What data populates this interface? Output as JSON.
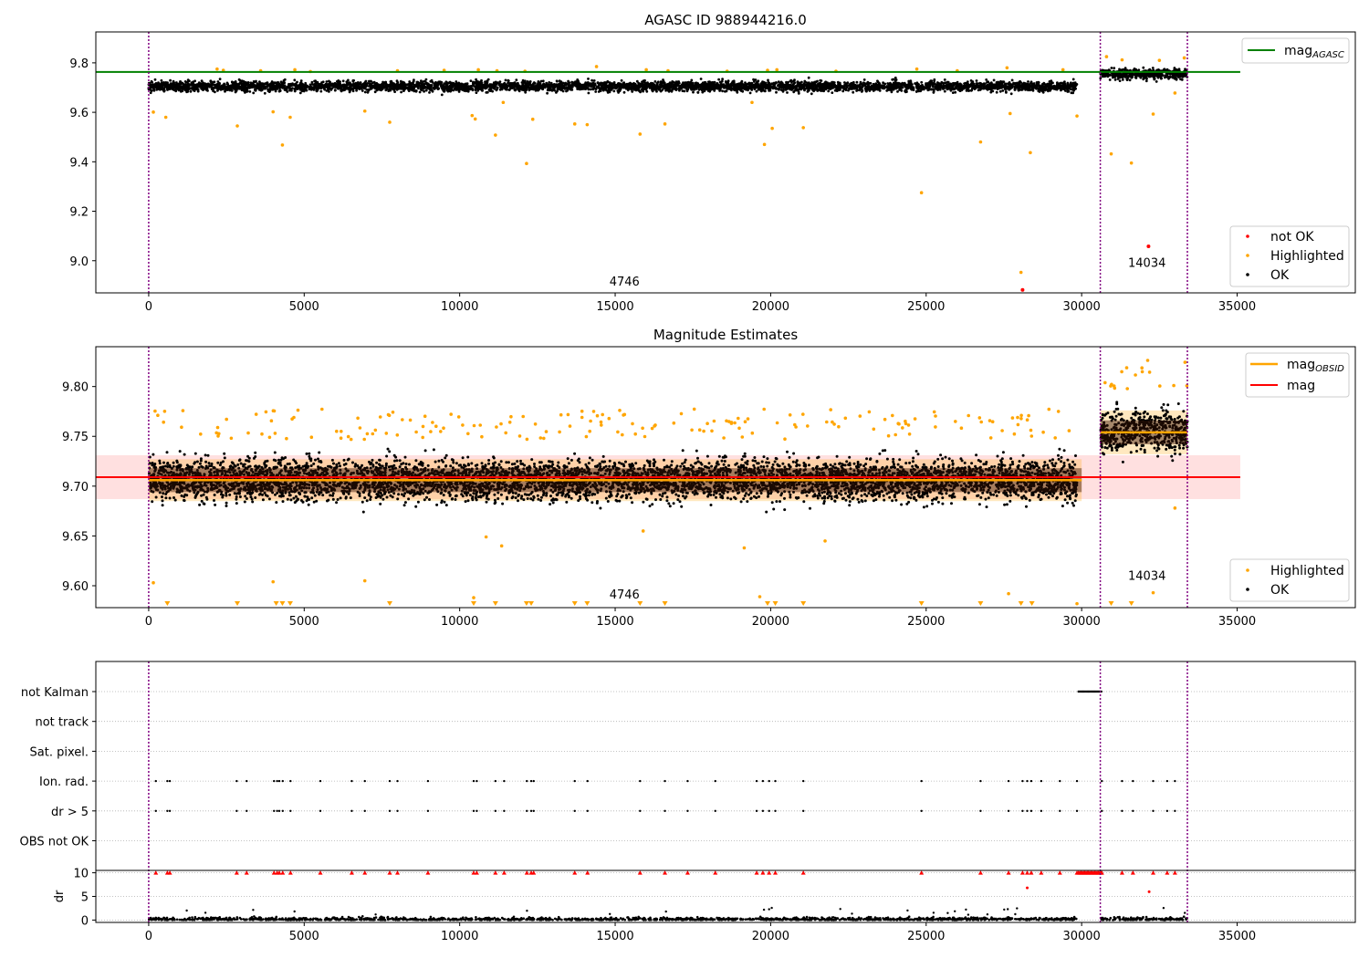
{
  "chart_data": [
    {
      "type": "scatter",
      "title": "AGASC ID 988944216.0",
      "xlim": [
        -1700,
        38800
      ],
      "ylim": [
        8.87,
        9.925
      ],
      "xticks": [
        0,
        5000,
        10000,
        15000,
        20000,
        25000,
        30000,
        35000
      ],
      "yticks": [
        9.0,
        9.2,
        9.4,
        9.6,
        9.8
      ],
      "grid": false,
      "legend_upper": {
        "placement": "top-right",
        "entries": [
          {
            "name": "magAGASC",
            "label": "mag",
            "sub": "AGASC",
            "color": "#008000"
          }
        ]
      },
      "legend_lower": {
        "placement": "bottom-right",
        "entries": [
          {
            "name": "not OK",
            "color": "#ff0000"
          },
          {
            "name": "Highlighted",
            "color": "#ffa500"
          },
          {
            "name": "OK",
            "color": "#000000"
          }
        ]
      },
      "hline": {
        "name": "magAGASC",
        "y": 9.763,
        "x": [
          -1700,
          35100
        ],
        "color": "#008000"
      },
      "vlines": [
        0,
        30600,
        33400
      ],
      "vline_color": "#800080",
      "annotations": [
        {
          "text": "4746",
          "x": 15300,
          "y": 8.9
        },
        {
          "text": "14034",
          "x": 32100,
          "y": 8.975
        }
      ],
      "segments": [
        {
          "x": [
            0,
            29850
          ],
          "center": 9.705,
          "spread": 0.022
        },
        {
          "x": [
            30600,
            33400
          ],
          "center": 9.755,
          "spread": 0.022
        }
      ],
      "series": [
        {
          "name": "Highlighted",
          "color": "#ffa500",
          "points": [
            [
              150,
              9.601
            ],
            [
              550,
              9.58
            ],
            [
              2850,
              9.545
            ],
            [
              4000,
              9.602
            ],
            [
              4300,
              9.468
            ],
            [
              4550,
              9.58
            ],
            [
              6950,
              9.605
            ],
            [
              7750,
              9.56
            ],
            [
              10400,
              9.587
            ],
            [
              10500,
              9.573
            ],
            [
              11150,
              9.508
            ],
            [
              11400,
              9.64
            ],
            [
              12150,
              9.393
            ],
            [
              12350,
              9.572
            ],
            [
              13700,
              9.553
            ],
            [
              14100,
              9.55
            ],
            [
              15800,
              9.512
            ],
            [
              16600,
              9.553
            ],
            [
              19400,
              9.64
            ],
            [
              19800,
              9.47
            ],
            [
              20050,
              9.535
            ],
            [
              21050,
              9.538
            ],
            [
              24850,
              9.275
            ],
            [
              26750,
              9.48
            ],
            [
              27700,
              9.595
            ],
            [
              28050,
              8.953
            ],
            [
              28350,
              9.437
            ],
            [
              29850,
              9.585
            ],
            [
              30950,
              9.432
            ],
            [
              31600,
              9.395
            ],
            [
              32300,
              9.593
            ],
            [
              33000,
              9.678
            ],
            [
              2200,
              9.775
            ],
            [
              2400,
              9.77
            ],
            [
              3600,
              9.768
            ],
            [
              4700,
              9.772
            ],
            [
              5200,
              9.765
            ],
            [
              8000,
              9.768
            ],
            [
              9500,
              9.77
            ],
            [
              10600,
              9.772
            ],
            [
              11200,
              9.768
            ],
            [
              12100,
              9.766
            ],
            [
              14400,
              9.785
            ],
            [
              16000,
              9.772
            ],
            [
              16700,
              9.768
            ],
            [
              18600,
              9.766
            ],
            [
              19900,
              9.77
            ],
            [
              20200,
              9.772
            ],
            [
              22100,
              9.766
            ],
            [
              24700,
              9.775
            ],
            [
              26000,
              9.768
            ],
            [
              27600,
              9.78
            ],
            [
              29400,
              9.772
            ],
            [
              30800,
              9.825
            ],
            [
              31300,
              9.812
            ],
            [
              32500,
              9.81
            ],
            [
              33300,
              9.82
            ]
          ]
        },
        {
          "name": "not OK",
          "color": "#ff0000",
          "points": [
            [
              28100,
              8.882
            ],
            [
              32150,
              9.058
            ]
          ]
        }
      ]
    },
    {
      "type": "scatter",
      "title": "Magnitude Estimates",
      "xlim": [
        -1700,
        38800
      ],
      "ylim": [
        9.578,
        9.84
      ],
      "xticks": [
        0,
        5000,
        10000,
        15000,
        20000,
        25000,
        30000,
        35000
      ],
      "yticks": [
        9.6,
        9.65,
        9.7,
        9.75,
        9.8
      ],
      "grid": false,
      "legend_upper": {
        "placement": "top-right",
        "entries": [
          {
            "name": "magOBSID",
            "label": "mag",
            "sub": "OBSID",
            "color": "#ffa500"
          },
          {
            "name": "mag",
            "label": "mag",
            "sub": "",
            "color": "#ff0000"
          }
        ]
      },
      "legend_lower": {
        "placement": "bottom-right",
        "entries": [
          {
            "name": "Highlighted",
            "color": "#ffa500"
          },
          {
            "name": "OK",
            "color": "#000000"
          }
        ]
      },
      "mag": {
        "y": 9.709,
        "band": [
          9.687,
          9.731
        ],
        "x": [
          -1700,
          35100
        ],
        "color": "#ff0000"
      },
      "obsid_steps": [
        {
          "x": [
            0,
            30000
          ],
          "y": 9.706,
          "band": [
            9.685,
            9.727
          ]
        },
        {
          "x": [
            30600,
            33400
          ],
          "y": 9.754,
          "band": [
            9.732,
            9.776
          ]
        }
      ],
      "vlines": [
        0,
        30600,
        33400
      ],
      "vline_color": "#800080",
      "annotations": [
        {
          "text": "4746",
          "x": 15300,
          "y": 9.587
        },
        {
          "text": "14034",
          "x": 32100,
          "y": 9.606
        }
      ],
      "segments": [
        {
          "x": [
            0,
            29850
          ],
          "center": 9.706,
          "spread": 0.022
        },
        {
          "x": [
            30600,
            33400
          ],
          "center": 9.755,
          "spread": 0.022
        }
      ],
      "outliers_below": [
        600,
        2850,
        4100,
        4300,
        4550,
        7750,
        10450,
        11150,
        12150,
        12300,
        13700,
        14100,
        15800,
        16600,
        19900,
        20150,
        21050,
        24850,
        26750,
        28050,
        28400,
        30950,
        31600
      ],
      "series": [
        {
          "name": "Highlighted",
          "color": "#ffa500",
          "points": [
            [
              150,
              9.603
            ],
            [
              4000,
              9.604
            ],
            [
              6950,
              9.605
            ],
            [
              10450,
              9.588
            ],
            [
              10850,
              9.649
            ],
            [
              11350,
              9.64
            ],
            [
              15900,
              9.655
            ],
            [
              19150,
              9.638
            ],
            [
              19650,
              9.589
            ],
            [
              21750,
              9.645
            ],
            [
              27650,
              9.592
            ],
            [
              29850,
              9.582
            ],
            [
              32300,
              9.593
            ],
            [
              33000,
              9.678
            ]
          ]
        }
      ]
    },
    {
      "type": "scatter",
      "title": "",
      "xlim": [
        -1700,
        38800
      ],
      "xticks": [
        0,
        5000,
        10000,
        15000,
        20000,
        25000,
        30000,
        35000
      ],
      "flag_rows": [
        "not Kalman",
        "not track",
        "Sat. pixel.",
        "Ion. rad.",
        "dr > 5",
        "OBS not OK"
      ],
      "flag_grid": "dotted",
      "dr_axis": {
        "label": "dr",
        "ylim": [
          -0.5,
          10.5
        ],
        "yticks": [
          0,
          5,
          10
        ]
      },
      "vlines": [
        0,
        30600,
        33400
      ],
      "vline_color": "#800080",
      "not_kalman": {
        "x": [
          29900,
          30650
        ],
        "row": "not Kalman"
      },
      "flag_events": [
        230,
        600,
        680,
        2830,
        3150,
        4030,
        4130,
        4200,
        4310,
        4560,
        5520,
        6530,
        6950,
        7750,
        8000,
        8980,
        10450,
        10550,
        11150,
        11430,
        12160,
        12300,
        12380,
        13700,
        14110,
        15800,
        16600,
        17330,
        18220,
        19550,
        19750,
        19950,
        20150,
        21050,
        24850,
        26750,
        27650,
        28100,
        28250,
        28380,
        28700,
        29300,
        29850,
        30650,
        31300,
        31650,
        32300,
        32750,
        33000
      ],
      "dr_high": [
        [
          28250,
          6.8
        ],
        [
          32170,
          6.0
        ]
      ]
    }
  ]
}
